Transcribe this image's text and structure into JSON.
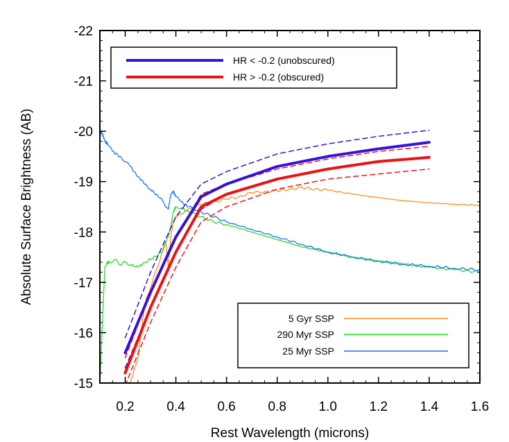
{
  "chart_data": {
    "type": "line",
    "title": "",
    "xlabel": "Rest Wavelength (microns)",
    "ylabel": "Absolute Surface Brightness (AB)",
    "xlim": [
      0.1,
      1.6
    ],
    "ylim": [
      -15,
      -22
    ],
    "y_inverted": true,
    "xticks": [
      0.2,
      0.4,
      0.6,
      0.8,
      1.0,
      1.2,
      1.4,
      1.6
    ],
    "xtick_labels": [
      "0.2",
      "0.4",
      "0.6",
      "0.8",
      "1.0",
      "1.2",
      "1.4",
      "1.6"
    ],
    "yticks": [
      -15,
      -16,
      -17,
      -18,
      -19,
      -20,
      -21,
      -22
    ],
    "ytick_labels": [
      "-15",
      "-16",
      "-17",
      "-18",
      "-19",
      "-20",
      "-21",
      "-22"
    ],
    "grid": false,
    "legends": [
      {
        "placement": "top-left",
        "entries": [
          {
            "label": "HR < -0.2 (unobscured)",
            "color": "#3311dd"
          },
          {
            "label": "HR > -0.2 (obscured)",
            "color": "#ee1111"
          }
        ]
      },
      {
        "placement": "bottom-right",
        "entries": [
          {
            "label": "5 Gyr SSP",
            "color": "#ff8c1a"
          },
          {
            "label": "290 Myr SSP",
            "color": "#22dd22"
          },
          {
            "label": "25 Myr SSP",
            "color": "#1a6fff"
          }
        ]
      }
    ],
    "series": [
      {
        "name": "HR < -0.2 (unobscured)",
        "color": "#3311dd",
        "style": "thick",
        "x": [
          0.2,
          0.3,
          0.4,
          0.5,
          0.6,
          0.8,
          1.0,
          1.2,
          1.4
        ],
        "y": [
          -15.6,
          -16.8,
          -17.9,
          -18.7,
          -18.95,
          -19.3,
          -19.5,
          -19.65,
          -19.78
        ]
      },
      {
        "name": "HR > -0.2 (obscured)",
        "color": "#ee1111",
        "style": "thick",
        "x": [
          0.2,
          0.3,
          0.4,
          0.5,
          0.6,
          0.8,
          1.0,
          1.2,
          1.4
        ],
        "y": [
          -15.2,
          -16.5,
          -17.6,
          -18.5,
          -18.75,
          -19.05,
          -19.25,
          -19.4,
          -19.48
        ]
      },
      {
        "color": "#3311dd",
        "style": "dashed",
        "x": [
          0.2,
          0.3,
          0.4,
          0.5,
          0.6,
          0.8,
          1.0,
          1.2,
          1.4
        ],
        "y": [
          -15.9,
          -17.2,
          -18.3,
          -18.95,
          -19.2,
          -19.55,
          -19.75,
          -19.9,
          -20.02
        ]
      },
      {
        "color": "#3311dd",
        "style": "dashed",
        "x": [
          0.2,
          0.3,
          0.4,
          0.5,
          0.6,
          0.8,
          1.0,
          1.2,
          1.4
        ],
        "y": [
          -15.3,
          -16.5,
          -17.6,
          -18.45,
          -18.75,
          -19.05,
          -19.25,
          -19.38,
          -19.5
        ]
      },
      {
        "color": "#ee1111",
        "style": "dashed",
        "x": [
          0.2,
          0.3,
          0.4,
          0.5,
          0.6,
          0.8,
          1.0,
          1.2,
          1.4
        ],
        "y": [
          -15.5,
          -16.8,
          -17.9,
          -18.75,
          -18.95,
          -19.25,
          -19.45,
          -19.6,
          -19.7
        ]
      },
      {
        "color": "#ee1111",
        "style": "dashed",
        "x": [
          0.2,
          0.3,
          0.4,
          0.5,
          0.6,
          0.8,
          1.0,
          1.2,
          1.4
        ],
        "y": [
          -14.95,
          -16.2,
          -17.3,
          -18.2,
          -18.5,
          -18.85,
          -19.05,
          -19.15,
          -19.25
        ]
      },
      {
        "name": "5 Gyr SSP",
        "color": "#ff8c1a",
        "style": "spectrum",
        "x": [
          0.22,
          0.25,
          0.26,
          0.27,
          0.28,
          0.3,
          0.32,
          0.34,
          0.36,
          0.37,
          0.38,
          0.39,
          0.4,
          0.42,
          0.45,
          0.5,
          0.55,
          0.6,
          0.65,
          0.7,
          0.75,
          0.8,
          0.85,
          0.9,
          0.95,
          1.0,
          1.1,
          1.2,
          1.3,
          1.4,
          1.5,
          1.6
        ],
        "y": [
          -15.0,
          -15.5,
          -15.9,
          -16.3,
          -16.6,
          -16.9,
          -17.2,
          -17.5,
          -17.8,
          -17.3,
          -17.9,
          -18.2,
          -18.3,
          -18.35,
          -18.45,
          -18.55,
          -18.6,
          -18.65,
          -18.7,
          -18.78,
          -18.8,
          -18.82,
          -18.85,
          -18.88,
          -18.85,
          -18.83,
          -18.75,
          -18.68,
          -18.62,
          -18.58,
          -18.55,
          -18.53
        ]
      },
      {
        "name": "290 Myr SSP",
        "color": "#22dd22",
        "style": "spectrum",
        "x": [
          0.1,
          0.105,
          0.11,
          0.115,
          0.12,
          0.13,
          0.14,
          0.16,
          0.18,
          0.2,
          0.22,
          0.25,
          0.28,
          0.3,
          0.33,
          0.35,
          0.37,
          0.38,
          0.39,
          0.4,
          0.42,
          0.45,
          0.5,
          0.55,
          0.6,
          0.7,
          0.8,
          0.9,
          1.0,
          1.1,
          1.2,
          1.3,
          1.4,
          1.5,
          1.6
        ],
        "y": [
          -15.0,
          -15.5,
          -16.2,
          -16.8,
          -17.3,
          -17.4,
          -17.4,
          -17.45,
          -17.35,
          -17.4,
          -17.35,
          -17.3,
          -17.4,
          -17.45,
          -17.55,
          -17.65,
          -17.9,
          -18.1,
          -18.4,
          -18.5,
          -18.48,
          -18.4,
          -18.3,
          -18.2,
          -18.15,
          -18.0,
          -17.85,
          -17.7,
          -17.6,
          -17.5,
          -17.42,
          -17.36,
          -17.3,
          -17.25,
          -17.2
        ]
      },
      {
        "name": "25 Myr SSP",
        "color": "#1a6fff",
        "style": "spectrum",
        "x": [
          0.1,
          0.105,
          0.11,
          0.12,
          0.13,
          0.15,
          0.18,
          0.2,
          0.22,
          0.25,
          0.28,
          0.3,
          0.33,
          0.35,
          0.37,
          0.38,
          0.39,
          0.4,
          0.42,
          0.45,
          0.5,
          0.55,
          0.6,
          0.7,
          0.8,
          0.9,
          1.0,
          1.1,
          1.2,
          1.3,
          1.4,
          1.5,
          1.6
        ],
        "y": [
          -19.85,
          -20.0,
          -19.95,
          -19.8,
          -19.75,
          -19.6,
          -19.5,
          -19.4,
          -19.3,
          -19.1,
          -18.95,
          -18.85,
          -18.7,
          -18.6,
          -18.45,
          -18.75,
          -18.8,
          -18.7,
          -18.6,
          -18.5,
          -18.4,
          -18.3,
          -18.2,
          -18.05,
          -17.9,
          -17.75,
          -17.6,
          -17.5,
          -17.42,
          -17.36,
          -17.32,
          -17.28,
          -17.25
        ]
      }
    ]
  }
}
